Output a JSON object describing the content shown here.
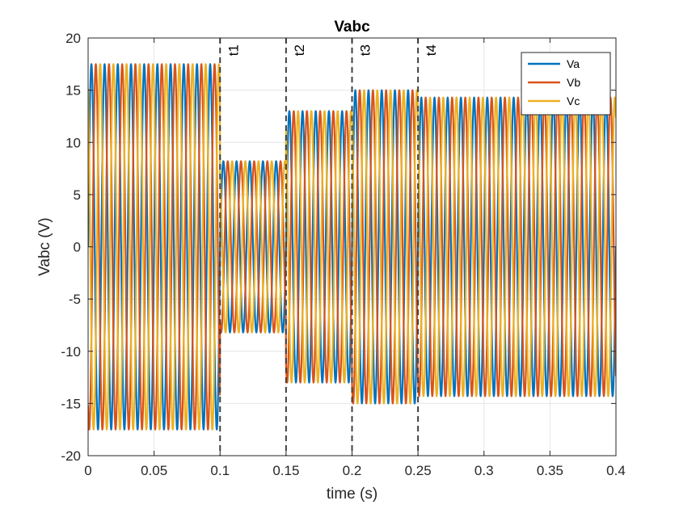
{
  "chart_data": {
    "type": "line",
    "title": "Vabc",
    "xlabel": "time (s)",
    "ylabel": "Vabc (V)",
    "xlim": [
      0,
      0.4
    ],
    "ylim": [
      -20,
      20
    ],
    "xticks": [
      "0",
      "0.05",
      "0.1",
      "0.15",
      "0.2",
      "0.25",
      "0.3",
      "0.35",
      "0.4"
    ],
    "yticks": [
      "-20",
      "-15",
      "-10",
      "-5",
      "0",
      "5",
      "10",
      "15",
      "20"
    ],
    "grid": true,
    "legend_position": "top-right",
    "frequency_hz": 100,
    "series": [
      {
        "name": "Va",
        "color": "#0072BD",
        "phase_deg": 0
      },
      {
        "name": "Vb",
        "color": "#D95319",
        "phase_deg": -120
      },
      {
        "name": "Vc",
        "color": "#EDB120",
        "phase_deg": 120
      }
    ],
    "segments": [
      {
        "t_start": 0.0,
        "t_end": 0.1,
        "amplitude": 17.5
      },
      {
        "t_start": 0.1,
        "t_end": 0.15,
        "amplitude": 8.2
      },
      {
        "t_start": 0.15,
        "t_end": 0.2,
        "amplitude": 13.0
      },
      {
        "t_start": 0.2,
        "t_end": 0.25,
        "amplitude": 15.0
      },
      {
        "t_start": 0.25,
        "t_end": 0.4,
        "amplitude": 14.3
      }
    ],
    "events": [
      {
        "label": "t1",
        "t": 0.1
      },
      {
        "label": "t2",
        "t": 0.15
      },
      {
        "label": "t3",
        "t": 0.2
      },
      {
        "label": "t4",
        "t": 0.25
      }
    ]
  }
}
